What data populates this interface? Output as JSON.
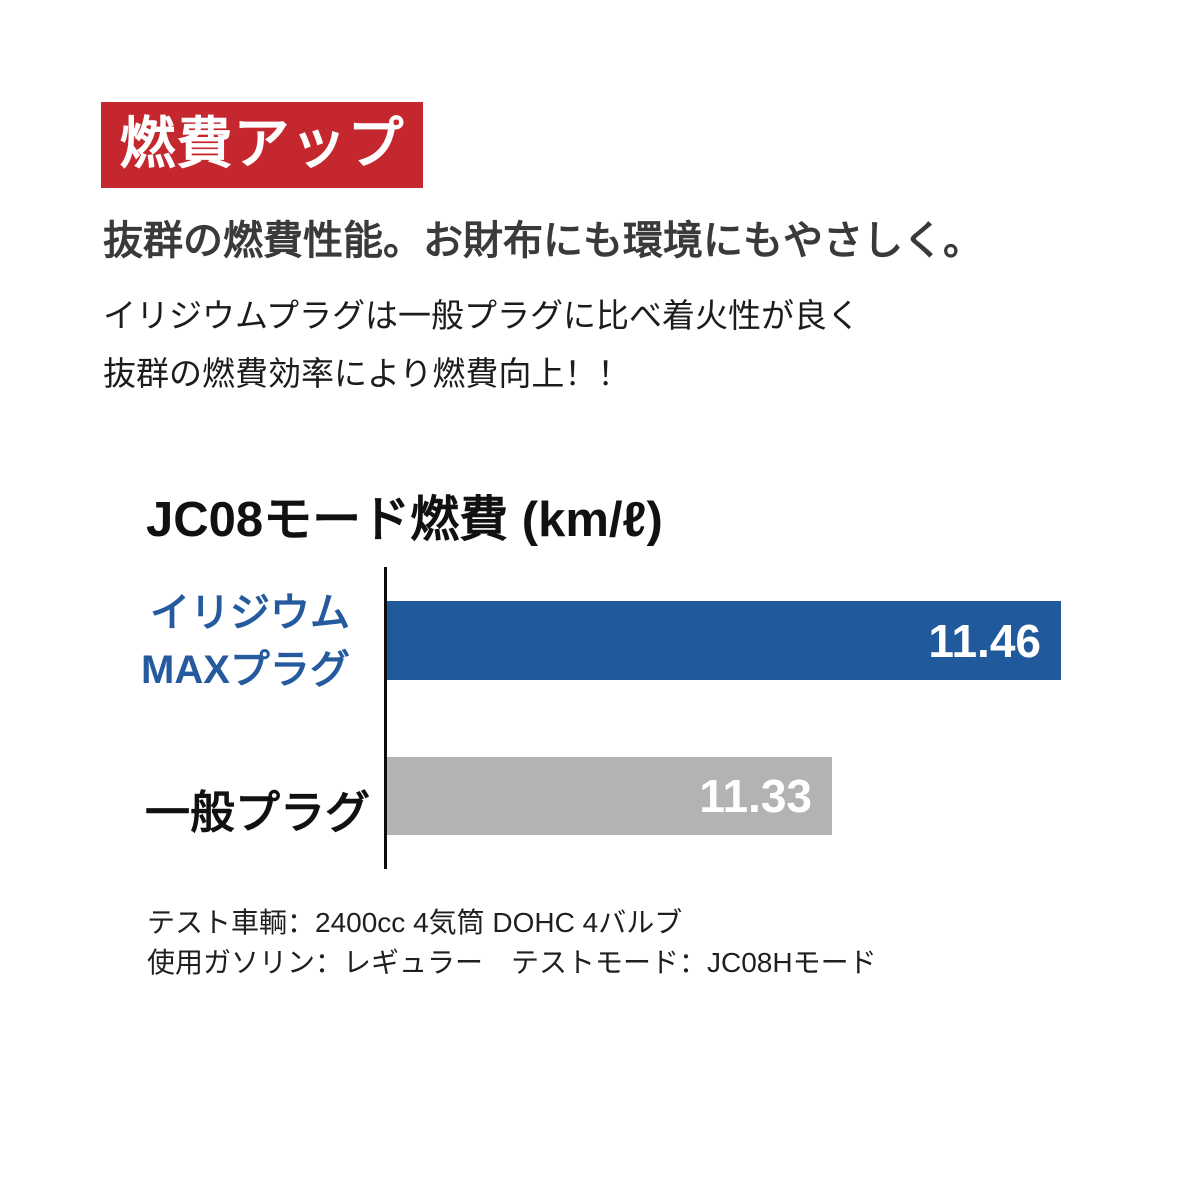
{
  "badge": {
    "label": "燃費アップ",
    "bg_color": "#c4282e",
    "text_color": "#ffffff"
  },
  "headline": "抜群の燃費性能。お財布にも環境にもやさしく。",
  "description_lines": [
    "イリジウムプラグは一般プラグに比べ着火性が良く",
    "抜群の燃費効率により燃費向上！！"
  ],
  "chart_data": {
    "type": "bar",
    "orientation": "horizontal",
    "title": "JC08モード燃費 (km/ℓ)",
    "unit": "km/ℓ",
    "categories": [
      "イリジウムMAXプラグ",
      "一般プラグ"
    ],
    "values": [
      11.46,
      11.33
    ],
    "series": [
      {
        "name": "イリジウムMAXプラグ",
        "label_lines": [
          "イリジウム",
          "MAXプラグ"
        ],
        "value": 11.46,
        "value_label": "11.46",
        "bar_color": "#215a9c",
        "label_color": "#255a9e"
      },
      {
        "name": "一般プラグ",
        "label_lines": [
          "一般プラグ"
        ],
        "value": 11.33,
        "value_label": "11.33",
        "bar_color": "#b2b3b5",
        "label_color": "#111111"
      }
    ],
    "value_label_color": "#ffffff",
    "value_labels_position": "inside-right",
    "axis_line_color": "#0d0d0d",
    "grid": false,
    "legend": "none",
    "note": "bar lengths not to linear scale (truncated axis for emphasis)"
  },
  "footnotes": [
    "テスト車輌：2400cc 4気筒 DOHC 4バルブ",
    "使用ガソリン：レギュラー　テストモード：JC08Hモード"
  ]
}
